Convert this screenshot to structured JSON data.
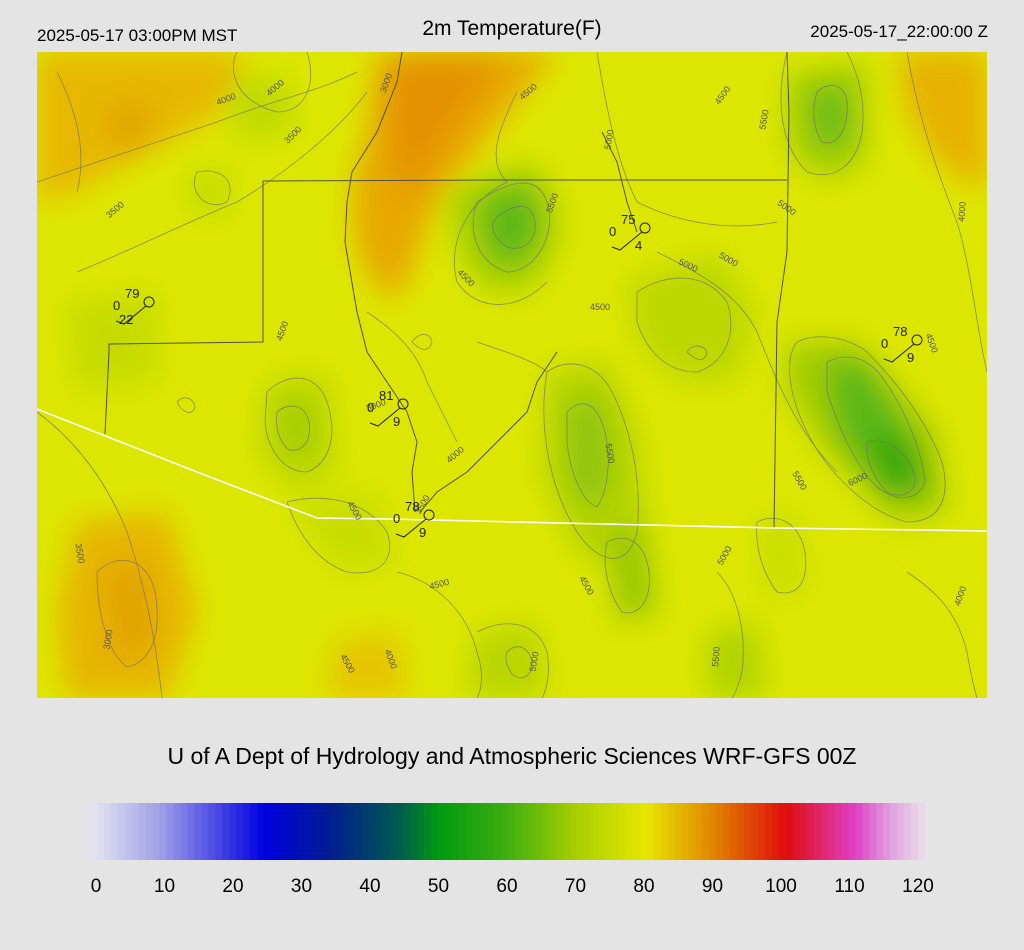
{
  "header": {
    "local_time": "2025-05-17 03:00PM MST",
    "title": "2m Temperature(F)",
    "utc_time": "2025-05-17_22:00:00 Z"
  },
  "footer": {
    "credit": "U of A Dept of Hydrology and Atmospheric Sciences WRF-GFS 00Z"
  },
  "colorbar": {
    "ticks": [
      "0",
      "10",
      "20",
      "30",
      "40",
      "50",
      "60",
      "70",
      "80",
      "90",
      "100",
      "110",
      "120"
    ],
    "range": [
      0,
      120
    ],
    "stops": [
      {
        "value": 0,
        "color": "#e6e6f0"
      },
      {
        "value": 10,
        "color": "#a0a0e8"
      },
      {
        "value": 25,
        "color": "#0000e0"
      },
      {
        "value": 35,
        "color": "#00208c"
      },
      {
        "value": 45,
        "color": "#00604a"
      },
      {
        "value": 50,
        "color": "#009a10"
      },
      {
        "value": 60,
        "color": "#40ae10"
      },
      {
        "value": 70,
        "color": "#a8d000"
      },
      {
        "value": 80,
        "color": "#e8e600"
      },
      {
        "value": 90,
        "color": "#e08000"
      },
      {
        "value": 100,
        "color": "#e00c0c"
      },
      {
        "value": 110,
        "color": "#e040c8"
      },
      {
        "value": 115,
        "color": "#e0a0e0"
      },
      {
        "value": 120,
        "color": "#eae0ea"
      }
    ]
  },
  "map": {
    "background_color": "#dde600",
    "contour_labels": [
      "3000",
      "3500",
      "4000",
      "4500",
      "5000",
      "5500",
      "6000",
      "3500",
      "4000",
      "4000",
      "4500",
      "4500",
      "5000",
      "5000",
      "5500",
      "3500",
      "4500",
      "4500",
      "5500",
      "5500",
      "5000",
      "4500",
      "4000",
      "4500",
      "3000",
      "5000",
      "5500",
      "4500",
      "4000",
      "4500",
      "3000",
      "3500",
      "4500",
      "5000",
      "4000"
    ],
    "stations": [
      {
        "temp": "79",
        "dew": "0",
        "wind": "22"
      },
      {
        "temp": "75",
        "dew": "0",
        "wind": "4"
      },
      {
        "temp": "78",
        "dew": "0",
        "wind": "9"
      },
      {
        "temp": "81",
        "dew": "0",
        "wind": "9"
      },
      {
        "temp": "78",
        "dew": "0",
        "wind": "9"
      }
    ]
  }
}
